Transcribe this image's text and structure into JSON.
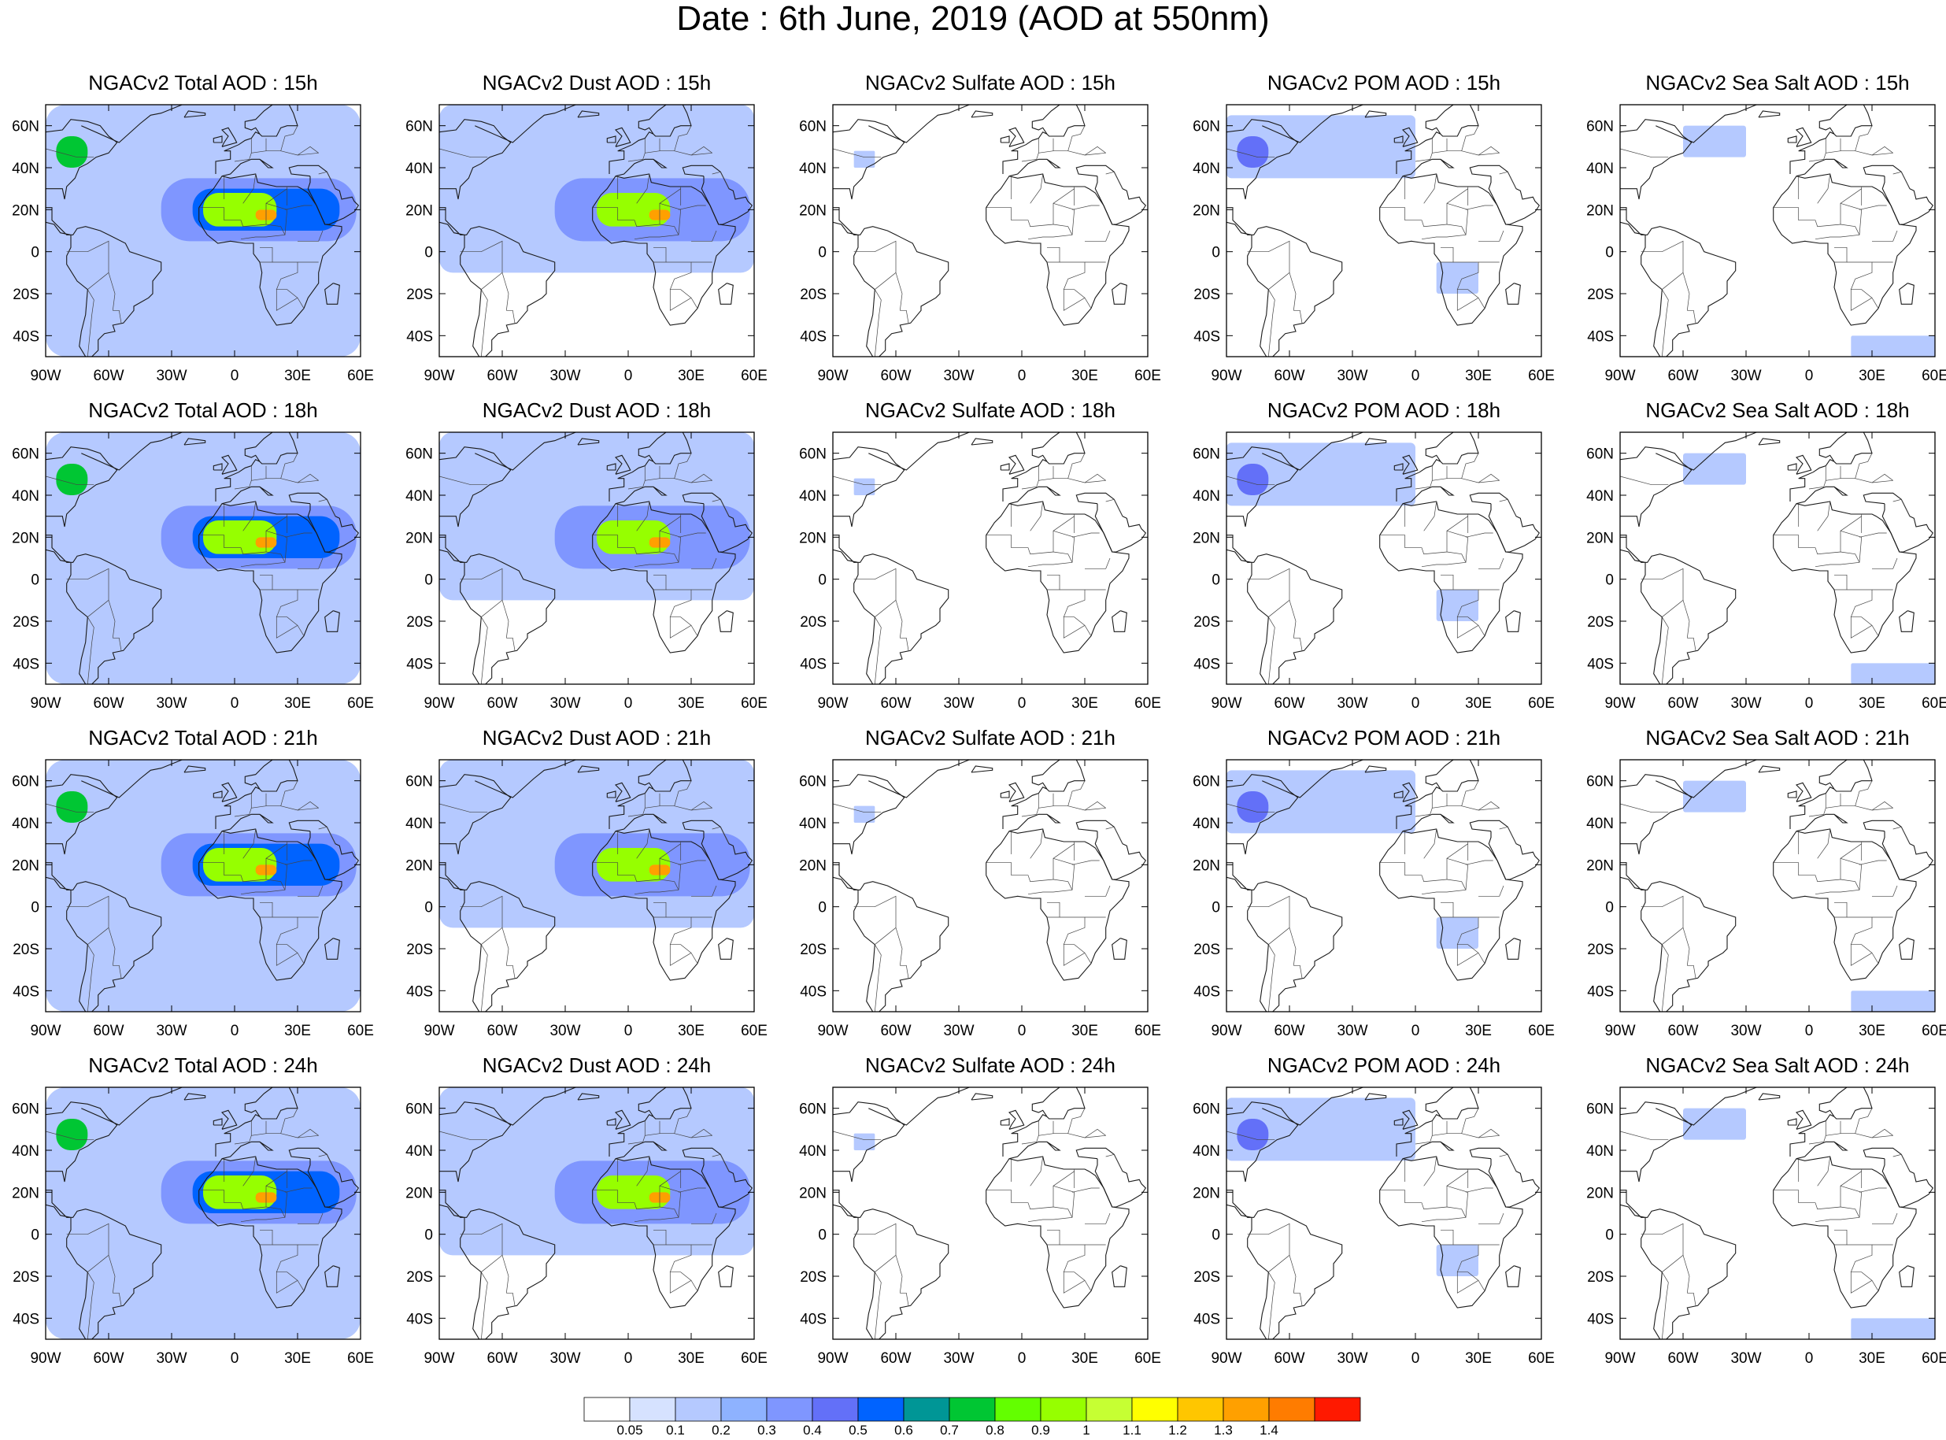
{
  "title": "Date : 6th June, 2019 (AOD at 550nm)",
  "map_extent": {
    "lon": [
      -90,
      60
    ],
    "lat": [
      -50,
      70
    ]
  },
  "axes": {
    "lon_ticks": [
      {
        "value": -90,
        "label": "90W"
      },
      {
        "value": -60,
        "label": "60W"
      },
      {
        "value": -30,
        "label": "30W"
      },
      {
        "value": 0,
        "label": "0"
      },
      {
        "value": 30,
        "label": "30E"
      },
      {
        "value": 60,
        "label": "60E"
      }
    ],
    "lat_ticks": [
      {
        "value": 60,
        "label": "60N"
      },
      {
        "value": 40,
        "label": "40N"
      },
      {
        "value": 20,
        "label": "20N"
      },
      {
        "value": 0,
        "label": "0"
      },
      {
        "value": -20,
        "label": "20S"
      },
      {
        "value": -40,
        "label": "40S"
      }
    ]
  },
  "species": [
    {
      "key": "total",
      "label": "Total"
    },
    {
      "key": "dust",
      "label": "Dust"
    },
    {
      "key": "sulfate",
      "label": "Sulfate"
    },
    {
      "key": "pom",
      "label": "POM"
    },
    {
      "key": "seasalt",
      "label": "Sea Salt"
    }
  ],
  "hours": [
    "15h",
    "18h",
    "21h",
    "24h"
  ],
  "panels": [
    [
      "NGACv2 Total AOD : 15h",
      "NGACv2 Dust AOD : 15h",
      "NGACv2 Sulfate AOD : 15h",
      "NGACv2 POM AOD : 15h",
      "NGACv2 Sea Salt AOD : 15h"
    ],
    [
      "NGACv2 Total AOD : 18h",
      "NGACv2 Dust AOD : 18h",
      "NGACv2 Sulfate AOD : 18h",
      "NGACv2 POM AOD : 18h",
      "NGACv2 Sea Salt AOD : 18h"
    ],
    [
      "NGACv2 Total AOD : 21h",
      "NGACv2 Dust AOD : 21h",
      "NGACv2 Sulfate AOD : 21h",
      "NGACv2 POM AOD : 21h",
      "NGACv2 Sea Salt AOD : 21h"
    ],
    [
      "NGACv2 Total AOD : 24h",
      "NGACv2 Dust AOD : 24h",
      "NGACv2 Sulfate AOD : 24h",
      "NGACv2 POM AOD : 24h",
      "NGACv2 Sea Salt  AOD : 24h"
    ]
  ],
  "colorbar": {
    "colors": [
      "#ffffff",
      "#d6e2ff",
      "#b5c9ff",
      "#8eb2ff",
      "#7f96ff",
      "#6370f8",
      "#0063ff",
      "#009696",
      "#00c633",
      "#63ff00",
      "#96ff00",
      "#c6ff33",
      "#ffff00",
      "#ffc600",
      "#ffa000",
      "#ff7c00",
      "#ff1900"
    ],
    "labels": [
      "0.05",
      "0.1",
      "0.2",
      "0.3",
      "0.4",
      "0.5",
      "0.6",
      "0.7",
      "0.8",
      "0.9",
      "1",
      "1.1",
      "1.2",
      "1.3",
      "1.4"
    ]
  },
  "chart_data": {
    "type": "heatmap",
    "title": "Date : 6th June, 2019 (AOD at 550nm)",
    "variable": "AOD at 550nm",
    "grid_rows": [
      "15h",
      "18h",
      "21h",
      "24h"
    ],
    "grid_cols": [
      "Total",
      "Dust",
      "Sulfate",
      "POM",
      "Sea Salt"
    ],
    "xlim": [
      -90,
      60
    ],
    "ylim": [
      -50,
      70
    ],
    "contour_levels": [
      0.05,
      0.1,
      0.2,
      0.3,
      0.4,
      0.5,
      0.6,
      0.7,
      0.8,
      0.9,
      1,
      1.1,
      1.2,
      1.3,
      1.4
    ],
    "aerosol_features": {
      "total": [
        {
          "lon": [
            -90,
            60
          ],
          "lat": [
            -50,
            70
          ],
          "level": 0.1
        },
        {
          "lon": [
            -35,
            58
          ],
          "lat": [
            5,
            35
          ],
          "level": 0.3
        },
        {
          "lon": [
            -20,
            50
          ],
          "lat": [
            10,
            30
          ],
          "level": 0.5
        },
        {
          "lon": [
            -15,
            20
          ],
          "lat": [
            12,
            28
          ],
          "level": 0.9
        },
        {
          "lon": [
            10,
            20
          ],
          "lat": [
            15,
            20
          ],
          "level": 1.3
        },
        {
          "lon": [
            -85,
            -70
          ],
          "lat": [
            40,
            55
          ],
          "level": 0.7
        }
      ],
      "dust": [
        {
          "lon": [
            -90,
            60
          ],
          "lat": [
            -10,
            70
          ],
          "level": 0.1
        },
        {
          "lon": [
            -35,
            58
          ],
          "lat": [
            5,
            35
          ],
          "level": 0.3
        },
        {
          "lon": [
            -15,
            20
          ],
          "lat": [
            12,
            28
          ],
          "level": 0.9
        },
        {
          "lon": [
            10,
            20
          ],
          "lat": [
            15,
            20
          ],
          "level": 1.3
        }
      ],
      "sulfate": [
        {
          "lon": [
            -80,
            -70
          ],
          "lat": [
            40,
            48
          ],
          "level": 0.1
        }
      ],
      "pom": [
        {
          "lon": [
            -90,
            0
          ],
          "lat": [
            35,
            65
          ],
          "level": 0.1
        },
        {
          "lon": [
            -85,
            -70
          ],
          "lat": [
            40,
            55
          ],
          "level": 0.4
        },
        {
          "lon": [
            10,
            30
          ],
          "lat": [
            -20,
            -5
          ],
          "level": 0.1
        }
      ],
      "seasalt": [
        {
          "lon": [
            -60,
            -30
          ],
          "lat": [
            45,
            60
          ],
          "level": 0.1
        },
        {
          "lon": [
            20,
            60
          ],
          "lat": [
            -50,
            -40
          ],
          "level": 0.1
        }
      ]
    }
  }
}
